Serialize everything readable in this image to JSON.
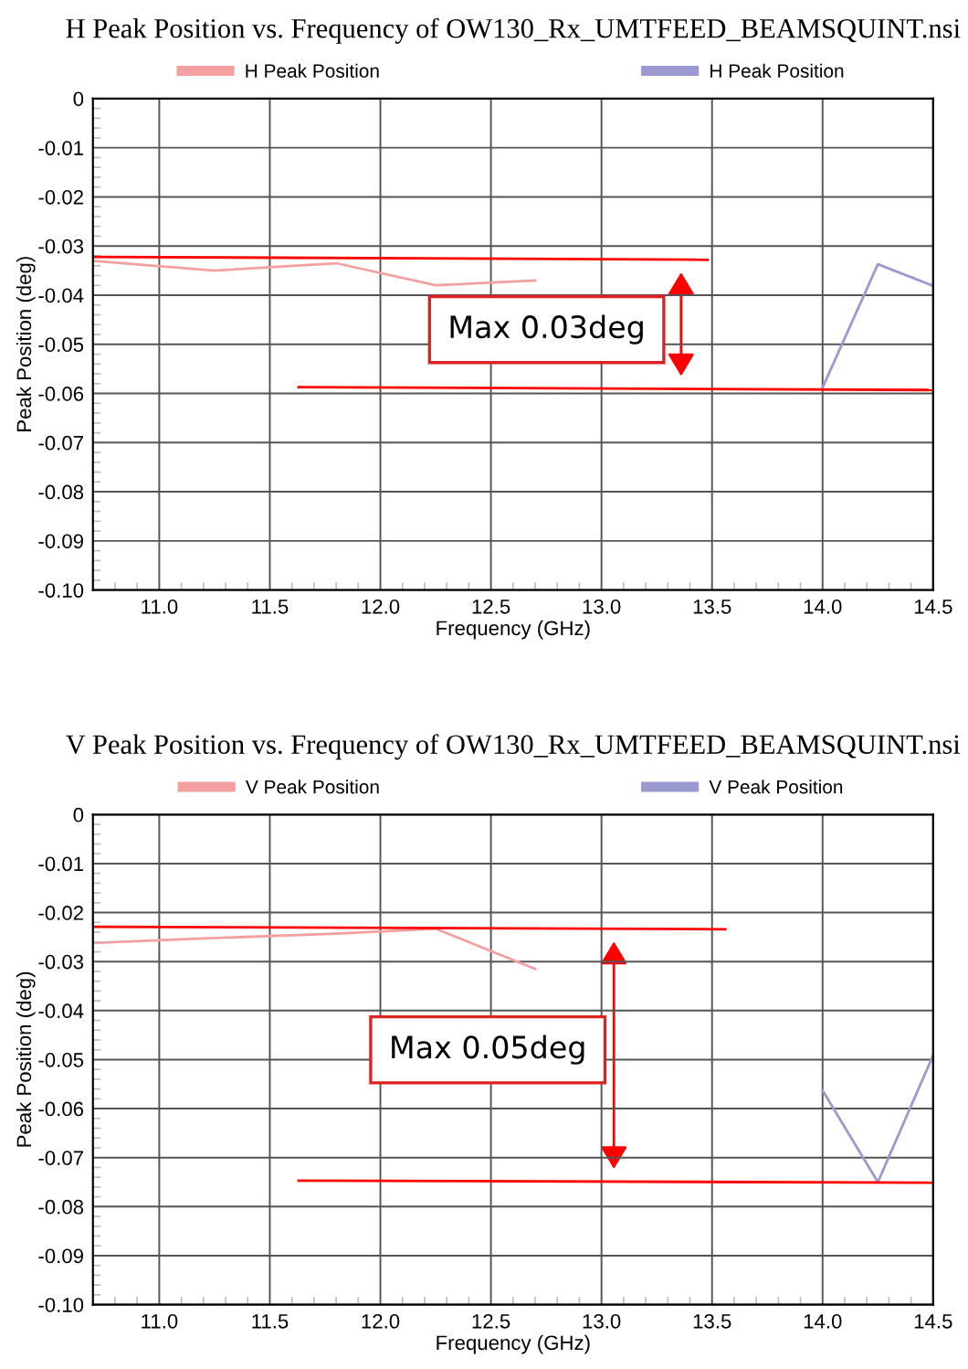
{
  "chart_data": [
    {
      "type": "line",
      "title": "H Peak Position vs. Frequency of OW130_Rx_UMTFEED_BEAMSQUINT.nsi",
      "xlabel": "Frequency (GHz)",
      "ylabel": "Peak Position (deg)",
      "xlim": [
        10.7,
        14.5
      ],
      "ylim": [
        -0.1,
        0
      ],
      "xticks": [
        {
          "value": 11,
          "label": "11.0"
        },
        {
          "value": 11.5,
          "label": "11.5"
        },
        {
          "value": 12,
          "label": "12.0"
        },
        {
          "value": 12.5,
          "label": "12.5"
        },
        {
          "value": 13,
          "label": "13.0"
        },
        {
          "value": 13.5,
          "label": "13.5"
        },
        {
          "value": 14,
          "label": "14.0"
        },
        {
          "value": 14.5,
          "label": "14.5"
        }
      ],
      "yticks": [
        0,
        {
          "value": -0.01,
          "label": "-0.01"
        },
        {
          "value": -0.02,
          "label": "-0.02"
        },
        {
          "value": -0.03,
          "label": "-0.03"
        },
        {
          "value": -0.04,
          "label": "-0.04"
        },
        {
          "value": -0.05,
          "label": "-0.05"
        },
        {
          "value": -0.06,
          "label": "-0.06"
        },
        {
          "value": -0.07,
          "label": "-0.07"
        },
        {
          "value": -0.08,
          "label": "-0.08"
        },
        {
          "value": -0.09,
          "label": "-0.09"
        },
        {
          "value": -0.1,
          "label": "-0.10"
        }
      ],
      "grid": true,
      "legend": "top",
      "marker": "none",
      "line_style": "solid",
      "series": [
        {
          "name": "H Peak Position",
          "color": "#f4a0a0",
          "x": [
            10.7,
            11.25,
            11.8,
            12.25,
            12.7
          ],
          "values": [
            -0.033,
            -0.035,
            -0.0335,
            -0.038,
            -0.037
          ]
        },
        {
          "name": "H Peak Position",
          "color": "#9a9ad0",
          "x": [
            14.0,
            14.25,
            14.5
          ],
          "values": [
            -0.0588,
            -0.0337,
            -0.0381
          ]
        },
        {
          "color": "#ff0000",
          "x": [
            10.7,
            13.48
          ],
          "values": [
            -0.0322,
            -0.0328
          ]
        },
        {
          "color": "#ff0000",
          "x": [
            11.63,
            14.5
          ],
          "values": [
            -0.0587,
            -0.0593
          ]
        }
      ],
      "annotations": [
        "Max 0.03deg"
      ]
    },
    {
      "type": "line",
      "title": "V Peak Position vs. Frequency of OW130_Rx_UMTFEED_BEAMSQUINT.nsi",
      "xlabel": "Frequency (GHz)",
      "ylabel": "Peak Position (deg)",
      "xlim": [
        10.7,
        14.5
      ],
      "ylim": [
        -0.1,
        0
      ],
      "xticks": [
        {
          "value": 11,
          "label": "11.0"
        },
        {
          "value": 11.5,
          "label": "11.5"
        },
        {
          "value": 12,
          "label": "12.0"
        },
        {
          "value": 12.5,
          "label": "12.5"
        },
        {
          "value": 13,
          "label": "13.0"
        },
        {
          "value": 13.5,
          "label": "13.5"
        },
        {
          "value": 14,
          "label": "14.0"
        },
        {
          "value": 14.5,
          "label": "14.5"
        }
      ],
      "yticks": [
        0,
        {
          "value": -0.01,
          "label": "-0.01"
        },
        {
          "value": -0.02,
          "label": "-0.02"
        },
        {
          "value": -0.03,
          "label": "-0.03"
        },
        {
          "value": -0.04,
          "label": "-0.04"
        },
        {
          "value": -0.05,
          "label": "-0.05"
        },
        {
          "value": -0.06,
          "label": "-0.06"
        },
        {
          "value": -0.07,
          "label": "-0.07"
        },
        {
          "value": -0.08,
          "label": "-0.08"
        },
        {
          "value": -0.09,
          "label": "-0.09"
        },
        {
          "value": -0.1,
          "label": "-0.10"
        }
      ],
      "grid": true,
      "legend": "top",
      "marker": "none",
      "line_style": "solid",
      "series": [
        {
          "name": "V Peak Position",
          "color": "#f4a0a0",
          "x": [
            10.7,
            11.25,
            11.8,
            12.25,
            12.7
          ],
          "values": [
            -0.0262,
            -0.0252,
            -0.0243,
            -0.0233,
            -0.0315
          ]
        },
        {
          "name": "V Peak Position",
          "color": "#9a9ad0",
          "x": [
            14.0,
            14.25,
            14.5
          ],
          "values": [
            -0.0563,
            -0.075,
            -0.0491
          ]
        },
        {
          "color": "#ff0000",
          "x": [
            10.7,
            13.56
          ],
          "values": [
            -0.0229,
            -0.0234
          ]
        },
        {
          "color": "#ff0000",
          "x": [
            11.63,
            14.5
          ],
          "values": [
            -0.0747,
            -0.0751
          ]
        }
      ],
      "annotations": [
        "Max 0.05deg"
      ]
    }
  ]
}
